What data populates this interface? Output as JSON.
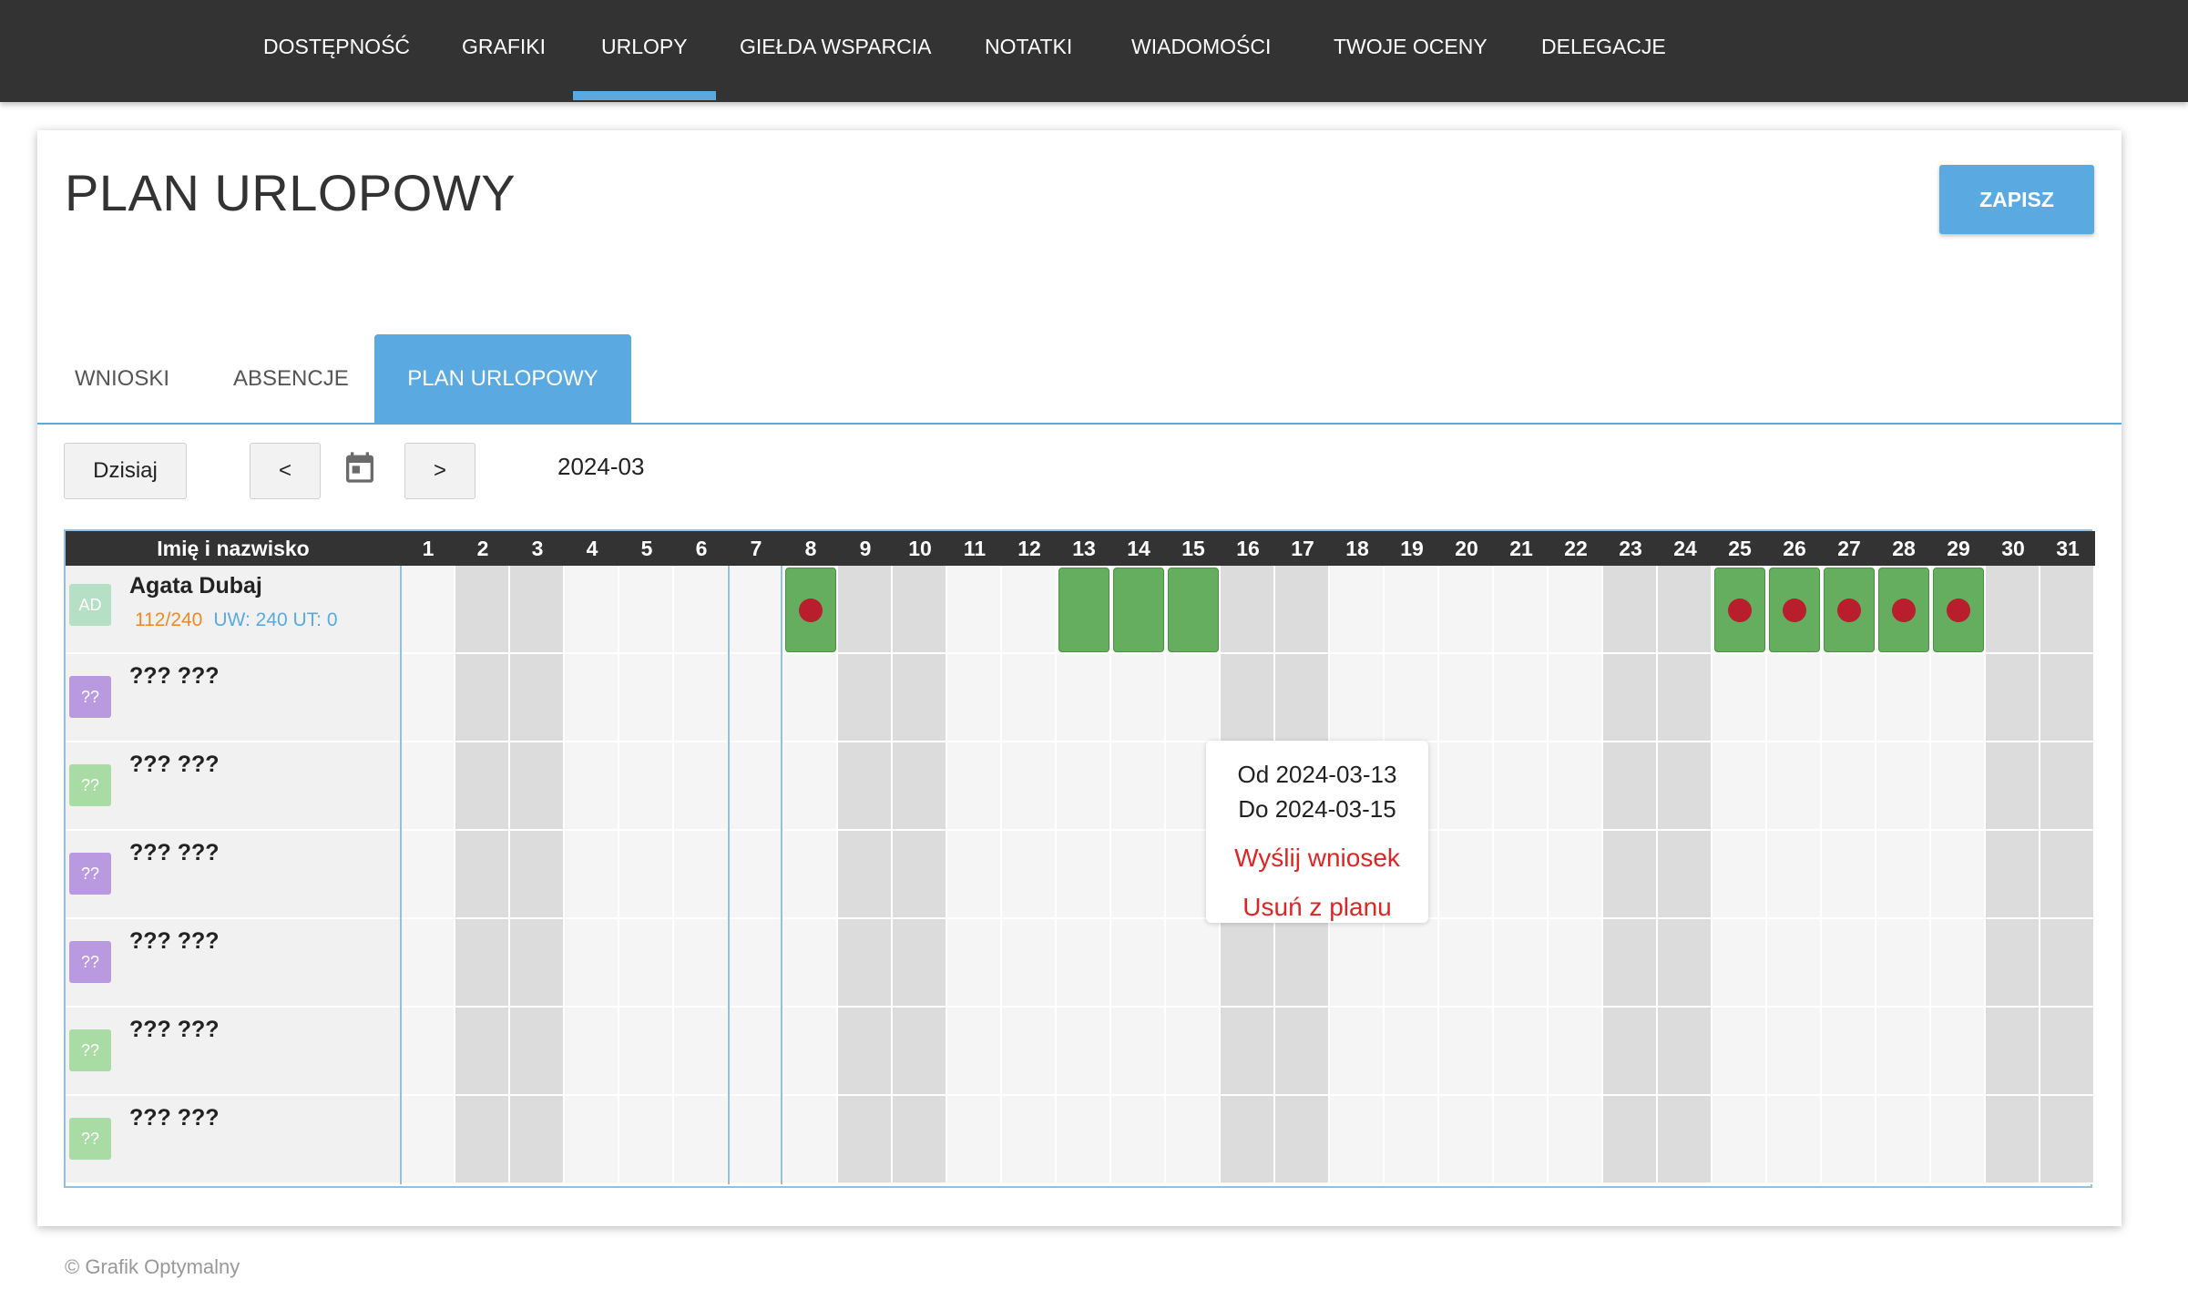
{
  "nav": {
    "items": [
      {
        "label": "DOSTĘPNOŚĆ"
      },
      {
        "label": "GRAFIKI"
      },
      {
        "label": "URLOPY",
        "active": true
      },
      {
        "label": "GIEŁDA WSPARCIA"
      },
      {
        "label": "NOTATKI"
      },
      {
        "label": "WIADOMOŚCI"
      },
      {
        "label": "TWOJE OCENY"
      },
      {
        "label": "DELEGACJE"
      }
    ]
  },
  "page": {
    "title": "PLAN URLOPOWY",
    "save_label": "ZAPISZ"
  },
  "tabs": [
    {
      "label": "WNIOSKI"
    },
    {
      "label": "ABSENCJE"
    },
    {
      "label": "PLAN URLOPOWY",
      "active": true
    }
  ],
  "toolbar": {
    "today_label": "Dzisiaj",
    "prev_label": "<",
    "next_label": ">",
    "month": "2024-03",
    "calendar_icon": "calendar-icon"
  },
  "calendar": {
    "name_header": "Imię i nazwisko",
    "days": [
      1,
      2,
      3,
      4,
      5,
      6,
      7,
      8,
      9,
      10,
      11,
      12,
      13,
      14,
      15,
      16,
      17,
      18,
      19,
      20,
      21,
      22,
      23,
      24,
      25,
      26,
      27,
      28,
      29,
      30,
      31
    ],
    "weekend_days": [
      2,
      3,
      9,
      10,
      16,
      17,
      23,
      24,
      30,
      31
    ],
    "employees": [
      {
        "initials": "AD",
        "name": "Agata Dubaj",
        "used": "112/240",
        "limits": "UW: 240 UT: 0",
        "avatar_color": "#b5e0c5",
        "vacation_days": [
          8,
          13,
          14,
          15,
          25,
          26,
          27,
          28,
          29
        ],
        "marked_days": [
          8,
          25,
          26,
          27,
          28,
          29
        ]
      },
      {
        "initials": "??",
        "name": "??? ???",
        "avatar_color": "#b99ae0"
      },
      {
        "initials": "??",
        "name": "??? ???",
        "avatar_color": "#a9dca4"
      },
      {
        "initials": "??",
        "name": "??? ???",
        "avatar_color": "#b99ae0"
      },
      {
        "initials": "??",
        "name": "??? ???",
        "avatar_color": "#b99ae0"
      },
      {
        "initials": "??",
        "name": "??? ???",
        "avatar_color": "#a9dca4"
      },
      {
        "initials": "??",
        "name": "??? ???",
        "avatar_color": "#a9dca4"
      }
    ]
  },
  "popup": {
    "from": "Od 2024-03-13",
    "to": "Do 2024-03-15",
    "send_request": "Wyślij wniosek",
    "remove_from_plan": "Usuń z planu"
  },
  "colors": {
    "accent": "#5aa9e0",
    "vacation": "#66ae5f",
    "marker": "#b81e2b",
    "stat_used": "#f08a24",
    "stat_limits": "#5aa9e0",
    "action": "#e02424"
  },
  "footer": {
    "copyright": "© Grafik Optymalny"
  }
}
